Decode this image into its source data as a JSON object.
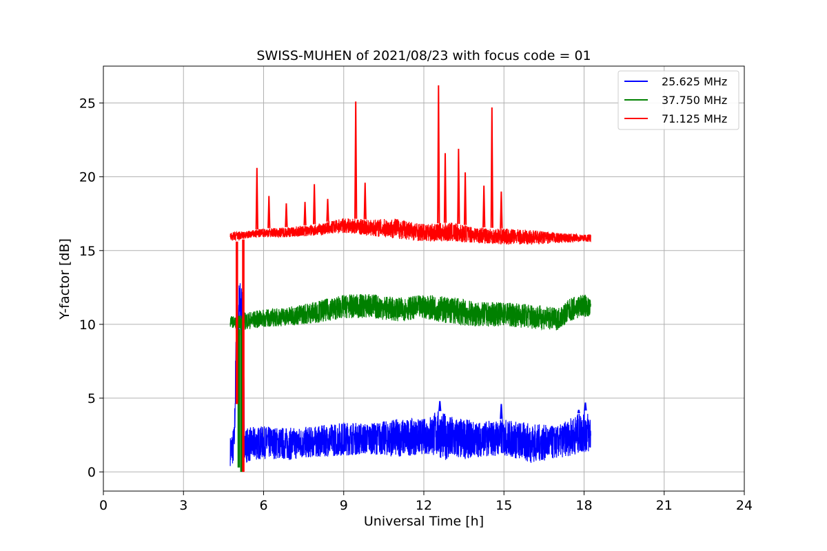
{
  "chart_data": {
    "type": "line",
    "title": "SWISS-MUHEN of 2021/08/23 with focus code = 01",
    "xlabel": "Universal Time [h]",
    "ylabel": "Y-factor [dB]",
    "xlim": [
      0,
      24
    ],
    "ylim": [
      -1.3,
      27.5
    ],
    "xticks": [
      0,
      3,
      6,
      9,
      12,
      15,
      18,
      21,
      24
    ],
    "yticks": [
      0,
      5,
      10,
      15,
      20,
      25
    ],
    "grid": true,
    "legend_position": "top-right",
    "series": [
      {
        "name": "25.625 MHz",
        "color": "#0000ff",
        "band_upper": [
          [
            4.75,
            2.4
          ],
          [
            4.9,
            3.2
          ],
          [
            5.0,
            12.8
          ],
          [
            5.1,
            13.1
          ],
          [
            5.2,
            12.9
          ],
          [
            5.3,
            3.0
          ],
          [
            6,
            3.1
          ],
          [
            7,
            3.0
          ],
          [
            8,
            3.1
          ],
          [
            9,
            3.4
          ],
          [
            10,
            3.3
          ],
          [
            11,
            3.6
          ],
          [
            12,
            3.6
          ],
          [
            12.5,
            4.2
          ],
          [
            13,
            3.8
          ],
          [
            14,
            3.4
          ],
          [
            15,
            3.6
          ],
          [
            16,
            3.3
          ],
          [
            17,
            3.1
          ],
          [
            18,
            4.2
          ],
          [
            18.25,
            4.0
          ]
        ],
        "band_lower": [
          [
            4.75,
            0.4
          ],
          [
            4.9,
            0.5
          ],
          [
            5.0,
            8.2
          ],
          [
            5.1,
            8.1
          ],
          [
            5.2,
            8.3
          ],
          [
            5.3,
            0.6
          ],
          [
            6,
            0.9
          ],
          [
            7,
            0.8
          ],
          [
            8,
            1.0
          ],
          [
            9,
            1.1
          ],
          [
            10,
            1.2
          ],
          [
            11,
            1.0
          ],
          [
            12,
            1.2
          ],
          [
            12.5,
            1.0
          ],
          [
            13,
            0.7
          ],
          [
            14,
            1.0
          ],
          [
            15,
            1.1
          ],
          [
            16,
            0.6
          ],
          [
            17,
            0.9
          ],
          [
            18,
            1.3
          ],
          [
            18.25,
            1.2
          ]
        ],
        "peaks": [
          [
            12.6,
            4.8
          ],
          [
            18.05,
            4.7
          ],
          [
            14.9,
            4.6
          ],
          [
            17.8,
            4.2
          ]
        ]
      },
      {
        "name": "37.750 MHz",
        "color": "#008000",
        "band_upper": [
          [
            4.75,
            10.6
          ],
          [
            5.0,
            10.5
          ],
          [
            5.2,
            10.8
          ],
          [
            6,
            11.0
          ],
          [
            7,
            11.2
          ],
          [
            8,
            11.6
          ],
          [
            9,
            12.0
          ],
          [
            10,
            12.1
          ],
          [
            11,
            11.8
          ],
          [
            12,
            12.0
          ],
          [
            13,
            11.9
          ],
          [
            14,
            11.5
          ],
          [
            15,
            11.5
          ],
          [
            16,
            11.4
          ],
          [
            17,
            11.1
          ],
          [
            17.5,
            11.8
          ],
          [
            18,
            12.1
          ],
          [
            18.25,
            11.7
          ]
        ],
        "band_lower": [
          [
            4.75,
            9.8
          ],
          [
            5.0,
            9.7
          ],
          [
            5.2,
            9.6
          ],
          [
            6,
            9.8
          ],
          [
            7,
            9.9
          ],
          [
            8,
            10.1
          ],
          [
            9,
            10.4
          ],
          [
            10,
            10.4
          ],
          [
            11,
            10.2
          ],
          [
            12,
            10.4
          ],
          [
            13,
            10.0
          ],
          [
            14,
            9.8
          ],
          [
            15,
            9.9
          ],
          [
            16,
            9.7
          ],
          [
            17,
            9.6
          ],
          [
            17.5,
            10.2
          ],
          [
            18,
            10.5
          ],
          [
            18.25,
            10.4
          ]
        ],
        "dropouts": [
          [
            5.05,
            0.3
          ],
          [
            5.15,
            0.0
          ]
        ]
      },
      {
        "name": "71.125 MHz",
        "color": "#ff0000",
        "band_upper": [
          [
            4.75,
            16.2
          ],
          [
            5.0,
            16.3
          ],
          [
            5.3,
            16.3
          ],
          [
            6,
            16.5
          ],
          [
            7,
            16.6
          ],
          [
            8,
            16.8
          ],
          [
            9,
            17.2
          ],
          [
            10,
            17.1
          ],
          [
            11,
            17.2
          ],
          [
            12,
            16.8
          ],
          [
            13,
            16.9
          ],
          [
            14,
            16.6
          ],
          [
            15,
            16.5
          ],
          [
            16,
            16.4
          ],
          [
            17,
            16.2
          ],
          [
            18,
            16.1
          ],
          [
            18.25,
            16.1
          ]
        ],
        "band_lower": [
          [
            4.75,
            15.7
          ],
          [
            5.0,
            15.6
          ],
          [
            5.3,
            15.8
          ],
          [
            6,
            15.9
          ],
          [
            7,
            15.9
          ],
          [
            8,
            16.0
          ],
          [
            9,
            16.2
          ],
          [
            10,
            16.0
          ],
          [
            11,
            15.8
          ],
          [
            12,
            15.6
          ],
          [
            13,
            15.6
          ],
          [
            14,
            15.5
          ],
          [
            15,
            15.4
          ],
          [
            16,
            15.4
          ],
          [
            17,
            15.5
          ],
          [
            18,
            15.6
          ],
          [
            18.25,
            15.6
          ]
        ],
        "dropouts": [
          [
            4.98,
            4.6
          ],
          [
            5.22,
            0.0
          ]
        ],
        "peaks": [
          [
            5.75,
            20.6
          ],
          [
            6.2,
            18.7
          ],
          [
            6.85,
            18.2
          ],
          [
            7.55,
            18.3
          ],
          [
            7.9,
            19.5
          ],
          [
            8.4,
            18.5
          ],
          [
            9.45,
            25.1
          ],
          [
            9.8,
            19.6
          ],
          [
            12.55,
            26.2
          ],
          [
            12.8,
            21.6
          ],
          [
            13.3,
            21.9
          ],
          [
            13.55,
            20.3
          ],
          [
            14.25,
            19.4
          ],
          [
            14.55,
            24.7
          ],
          [
            14.9,
            19.0
          ]
        ]
      }
    ]
  }
}
